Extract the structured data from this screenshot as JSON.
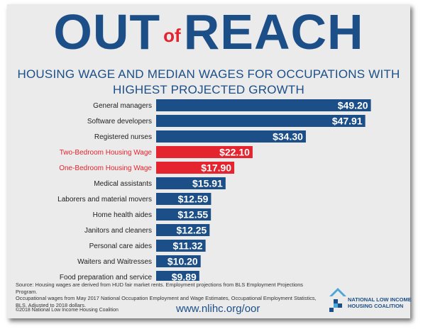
{
  "header": {
    "title_out": "OUT",
    "title_of": "of",
    "title_reach": "REACH",
    "subtitle_line1": "HOUSING WAGE AND MEDIAN WAGES FOR OCCUPATIONS WITH",
    "subtitle_line2": "HIGHEST PROJECTED GROWTH"
  },
  "colors": {
    "title_blue": "#1c4f87",
    "bar_blue": "#1c4f87",
    "bar_red": "#e4242f",
    "accent_red": "#e4242f"
  },
  "chart_data": {
    "type": "bar",
    "orientation": "horizontal",
    "title": "HOUSING WAGE AND MEDIAN WAGES FOR OCCUPATIONS WITH HIGHEST PROJECTED GROWTH",
    "categories": [
      "General managers",
      "Software developers",
      "Registered nurses",
      "Two-Bedroom Housing Wage",
      "One-Bedroom Housing Wage",
      "Medical assistants",
      "Laborers and material movers",
      "Home health aides",
      "Janitors and cleaners",
      "Personal care aides",
      "Waiters and Waitresses",
      "Food preparation and service"
    ],
    "values": [
      49.2,
      47.91,
      34.3,
      22.1,
      17.9,
      15.91,
      12.59,
      12.55,
      12.25,
      11.32,
      10.2,
      9.89
    ],
    "value_labels": [
      "$49.20",
      "$47.91",
      "$34.30",
      "$22.10",
      "$17.90",
      "$15.91",
      "$12.59",
      "$12.55",
      "$12.25",
      "$11.32",
      "$10.20",
      "$9.89"
    ],
    "highlighted": [
      false,
      false,
      false,
      true,
      true,
      false,
      false,
      false,
      false,
      false,
      false,
      false
    ],
    "xlim": [
      0,
      53
    ],
    "grid": false,
    "legend": "none"
  },
  "footer": {
    "source_line1": "Source: Housing wages are derived from HUD fair market rents. Employment projections from BLS Employment Projections Program.",
    "source_line2": "Occupational wages from May 2017 National Occupation Employment and Wage Estimates, Occupational Employment Statistics,",
    "source_line3": "BLS. Adjusted to 2018 dollars.",
    "copyright": "©2018 National Low Income Housing Coalition",
    "url": "www.nlihc.org/oor"
  },
  "logo": {
    "line1": "NATIONAL LOW INCOME",
    "line2": "HOUSING COALITION",
    "icon": "house-roof-logo-icon"
  }
}
